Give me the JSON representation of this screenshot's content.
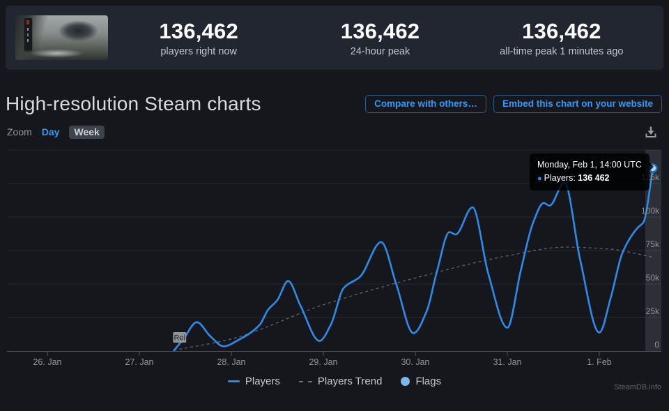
{
  "header": {
    "game_image_alt": "game-capsule-art",
    "stats": [
      {
        "value": "136,462",
        "label": "players right now"
      },
      {
        "value": "136,462",
        "label": "24-hour peak"
      },
      {
        "value": "136,462",
        "label": "all-time peak 1 minutes ago"
      }
    ]
  },
  "section": {
    "title": "High-resolution Steam charts",
    "compare_button": "Compare with others…",
    "embed_button": "Embed this chart on your website"
  },
  "toolbar": {
    "zoom_label": "Zoom",
    "day_label": "Day",
    "week_label": "Week",
    "download_icon": "download-icon"
  },
  "tooltip": {
    "title": "Monday, Feb 1, 14:00 UTC",
    "series_label": "Players:",
    "value": "136 462"
  },
  "legend": [
    {
      "label": "Players"
    },
    {
      "label": "Players Trend"
    },
    {
      "label": "Flags"
    }
  ],
  "watermark": "SteamDB.info",
  "colors": {
    "accent_blue": "#3898f2",
    "players_line": "#2d8ceb",
    "trend_line": "#6d7278",
    "flag_marker_fill": "#9da1a6",
    "marker_fill": "#aed2f2",
    "grid": "#282c32",
    "axis": "#53575d",
    "tick_text": "#8d9197",
    "hover_band": "rgba(190,200,215,0.14)"
  },
  "chart_data": {
    "type": "line",
    "title": "High-resolution Steam charts",
    "x_unit": "hours since Jan 26 00:00 UTC",
    "x_ticks": [
      "26. Jan",
      "27. Jan",
      "28. Jan",
      "29. Jan",
      "30. Jan",
      "31. Jan",
      "1. Feb"
    ],
    "x_tick_hours": [
      0,
      24,
      48,
      72,
      96,
      120,
      144
    ],
    "y_ticks": [
      "0",
      "25k",
      "50k",
      "75k",
      "100k",
      "125k"
    ],
    "ylim": [
      0,
      150000
    ],
    "grid": true,
    "legend_position": "bottom",
    "series": [
      {
        "name": "Players",
        "style": "solid",
        "points": [
          [
            33,
            200
          ],
          [
            35.5,
            9000
          ],
          [
            39,
            21500
          ],
          [
            42.5,
            11000
          ],
          [
            46,
            3500
          ],
          [
            50,
            8500
          ],
          [
            55.5,
            20000
          ],
          [
            57.5,
            30500
          ],
          [
            60,
            38000
          ],
          [
            62.8,
            52300
          ],
          [
            66,
            34000
          ],
          [
            71,
            7500
          ],
          [
            74,
            20000
          ],
          [
            77.3,
            47000
          ],
          [
            81.6,
            55500
          ],
          [
            87.1,
            81300
          ],
          [
            91,
            50000
          ],
          [
            95.5,
            13300
          ],
          [
            99,
            30000
          ],
          [
            101.6,
            59000
          ],
          [
            104.9,
            88800
          ],
          [
            106.5,
            87000
          ],
          [
            110.9,
            107300
          ],
          [
            115,
            58000
          ],
          [
            120,
            17400
          ],
          [
            123.5,
            60000
          ],
          [
            126.7,
            95600
          ],
          [
            129.5,
            110500
          ],
          [
            131,
            108500
          ],
          [
            134.9,
            125800
          ],
          [
            139,
            68000
          ],
          [
            144,
            13800
          ],
          [
            147,
            40000
          ],
          [
            150,
            73000
          ],
          [
            154,
            92000
          ],
          [
            155.5,
            96000
          ],
          [
            158,
            136462
          ]
        ]
      },
      {
        "name": "Players Trend",
        "style": "dashed",
        "points": [
          [
            33,
            500
          ],
          [
            48,
            9000
          ],
          [
            72,
            34500
          ],
          [
            96,
            54500
          ],
          [
            120,
            71000
          ],
          [
            135,
            77500
          ],
          [
            147,
            76000
          ],
          [
            153,
            73000
          ],
          [
            158,
            70000
          ]
        ]
      }
    ],
    "flags": [
      {
        "label": "Rel",
        "t": 34.5
      }
    ],
    "last_point": {
      "t": 158,
      "value": 136462,
      "tooltip": "Monday, Feb 1, 14:00 UTC — Players: 136 462"
    }
  }
}
